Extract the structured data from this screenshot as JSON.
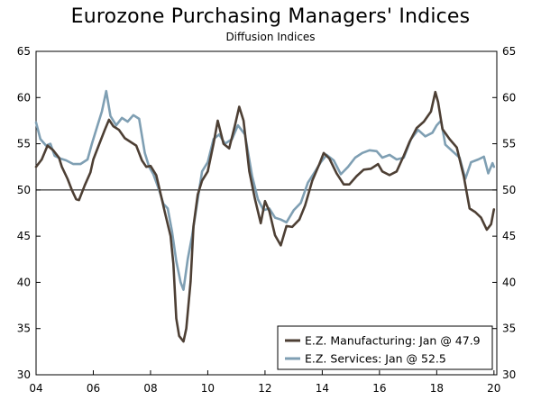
{
  "chart_data": {
    "type": "line",
    "title": "Eurozone Purchasing Managers' Indices",
    "subtitle": "Diffusion Indices",
    "xlabel": "",
    "ylabel": "",
    "xlim": [
      2004,
      2020.1
    ],
    "ylim": [
      30,
      65
    ],
    "x_ticks": [
      2004,
      2006,
      2008,
      2010,
      2012,
      2014,
      2016,
      2018,
      2020
    ],
    "x_tick_labels": [
      "04",
      "06",
      "08",
      "10",
      "12",
      "14",
      "16",
      "18",
      "20"
    ],
    "y_ticks": [
      30,
      35,
      40,
      45,
      50,
      55,
      60,
      65
    ],
    "y_tick_labels": [
      "30",
      "35",
      "40",
      "45",
      "50",
      "55",
      "60",
      "65"
    ],
    "reference_line": 50,
    "grid": false,
    "legend_position": "bottom-right",
    "series": [
      {
        "name": "E.Z. Manufacturing: Jan @ 47.9",
        "color": "#4d3f34",
        "points": [
          [
            2004.0,
            52.5
          ],
          [
            2004.2,
            53.3
          ],
          [
            2004.4,
            54.8
          ],
          [
            2004.6,
            54.3
          ],
          [
            2004.8,
            53.5
          ],
          [
            2004.9,
            52.5
          ],
          [
            2005.1,
            51.2
          ],
          [
            2005.25,
            50.0
          ],
          [
            2005.4,
            49.0
          ],
          [
            2005.5,
            48.9
          ],
          [
            2005.7,
            50.5
          ],
          [
            2005.9,
            51.9
          ],
          [
            2006.0,
            53.3
          ],
          [
            2006.2,
            54.9
          ],
          [
            2006.4,
            56.5
          ],
          [
            2006.55,
            57.6
          ],
          [
            2006.7,
            56.9
          ],
          [
            2006.9,
            56.5
          ],
          [
            2007.1,
            55.6
          ],
          [
            2007.3,
            55.2
          ],
          [
            2007.5,
            54.8
          ],
          [
            2007.7,
            53.2
          ],
          [
            2007.85,
            52.5
          ],
          [
            2008.0,
            52.6
          ],
          [
            2008.2,
            51.6
          ],
          [
            2008.35,
            49.6
          ],
          [
            2008.5,
            47.6
          ],
          [
            2008.7,
            45.0
          ],
          [
            2008.8,
            42.0
          ],
          [
            2008.9,
            36.1
          ],
          [
            2009.0,
            34.2
          ],
          [
            2009.15,
            33.6
          ],
          [
            2009.25,
            35.0
          ],
          [
            2009.4,
            40.1
          ],
          [
            2009.5,
            46.1
          ],
          [
            2009.65,
            49.5
          ],
          [
            2009.8,
            51.0
          ],
          [
            2010.0,
            52.0
          ],
          [
            2010.2,
            55.0
          ],
          [
            2010.35,
            57.5
          ],
          [
            2010.55,
            55.0
          ],
          [
            2010.75,
            54.5
          ],
          [
            2010.95,
            57.0
          ],
          [
            2011.1,
            59.0
          ],
          [
            2011.25,
            57.5
          ],
          [
            2011.45,
            52.0
          ],
          [
            2011.65,
            49.0
          ],
          [
            2011.85,
            46.4
          ],
          [
            2012.0,
            48.8
          ],
          [
            2012.15,
            47.7
          ],
          [
            2012.35,
            45.1
          ],
          [
            2012.55,
            44.0
          ],
          [
            2012.75,
            46.1
          ],
          [
            2012.95,
            46.0
          ],
          [
            2013.2,
            46.8
          ],
          [
            2013.4,
            48.3
          ],
          [
            2013.65,
            51.0
          ],
          [
            2013.9,
            52.8
          ],
          [
            2014.05,
            54.0
          ],
          [
            2014.25,
            53.4
          ],
          [
            2014.5,
            51.8
          ],
          [
            2014.75,
            50.6
          ],
          [
            2014.95,
            50.6
          ],
          [
            2015.2,
            51.5
          ],
          [
            2015.45,
            52.2
          ],
          [
            2015.7,
            52.3
          ],
          [
            2015.95,
            52.8
          ],
          [
            2016.1,
            52.0
          ],
          [
            2016.35,
            51.6
          ],
          [
            2016.6,
            52.0
          ],
          [
            2016.85,
            53.7
          ],
          [
            2017.05,
            55.2
          ],
          [
            2017.3,
            56.7
          ],
          [
            2017.55,
            57.4
          ],
          [
            2017.8,
            58.5
          ],
          [
            2017.95,
            60.6
          ],
          [
            2018.05,
            59.5
          ],
          [
            2018.2,
            56.6
          ],
          [
            2018.45,
            55.5
          ],
          [
            2018.7,
            54.6
          ],
          [
            2018.95,
            51.4
          ],
          [
            2019.15,
            48.0
          ],
          [
            2019.35,
            47.6
          ],
          [
            2019.55,
            47.0
          ],
          [
            2019.75,
            45.7
          ],
          [
            2019.9,
            46.3
          ],
          [
            2020.0,
            47.9
          ]
        ]
      },
      {
        "name": "E.Z. Services: Jan @ 52.5",
        "color": "#7f9fb3",
        "points": [
          [
            2004.0,
            57.3
          ],
          [
            2004.15,
            55.5
          ],
          [
            2004.35,
            54.8
          ],
          [
            2004.5,
            55.0
          ],
          [
            2004.65,
            53.7
          ],
          [
            2004.85,
            53.4
          ],
          [
            2005.05,
            53.2
          ],
          [
            2005.3,
            52.8
          ],
          [
            2005.55,
            52.8
          ],
          [
            2005.8,
            53.3
          ],
          [
            2005.95,
            55.0
          ],
          [
            2006.15,
            57.0
          ],
          [
            2006.3,
            58.5
          ],
          [
            2006.45,
            60.7
          ],
          [
            2006.6,
            58.0
          ],
          [
            2006.8,
            57.0
          ],
          [
            2007.0,
            57.8
          ],
          [
            2007.2,
            57.4
          ],
          [
            2007.4,
            58.1
          ],
          [
            2007.6,
            57.7
          ],
          [
            2007.8,
            54.0
          ],
          [
            2007.95,
            52.5
          ],
          [
            2008.1,
            51.7
          ],
          [
            2008.3,
            50.0
          ],
          [
            2008.45,
            48.5
          ],
          [
            2008.6,
            48.0
          ],
          [
            2008.75,
            45.5
          ],
          [
            2008.9,
            42.3
          ],
          [
            2009.05,
            40.0
          ],
          [
            2009.15,
            39.2
          ],
          [
            2009.3,
            42.5
          ],
          [
            2009.45,
            45.0
          ],
          [
            2009.6,
            48.0
          ],
          [
            2009.8,
            52.0
          ],
          [
            2010.0,
            53.0
          ],
          [
            2010.2,
            55.5
          ],
          [
            2010.4,
            56.0
          ],
          [
            2010.6,
            55.0
          ],
          [
            2010.85,
            55.5
          ],
          [
            2011.05,
            57.0
          ],
          [
            2011.3,
            56.0
          ],
          [
            2011.55,
            51.5
          ],
          [
            2011.75,
            49.0
          ],
          [
            2011.95,
            47.8
          ],
          [
            2012.15,
            48.0
          ],
          [
            2012.35,
            47.0
          ],
          [
            2012.55,
            46.8
          ],
          [
            2012.75,
            46.5
          ],
          [
            2013.0,
            47.8
          ],
          [
            2013.25,
            48.6
          ],
          [
            2013.5,
            50.8
          ],
          [
            2013.75,
            52.0
          ],
          [
            2013.95,
            53.0
          ],
          [
            2014.15,
            53.8
          ],
          [
            2014.4,
            53.2
          ],
          [
            2014.65,
            51.7
          ],
          [
            2014.9,
            52.5
          ],
          [
            2015.15,
            53.5
          ],
          [
            2015.4,
            54.0
          ],
          [
            2015.65,
            54.3
          ],
          [
            2015.9,
            54.2
          ],
          [
            2016.1,
            53.5
          ],
          [
            2016.35,
            53.8
          ],
          [
            2016.6,
            53.3
          ],
          [
            2016.85,
            53.5
          ],
          [
            2017.1,
            55.5
          ],
          [
            2017.35,
            56.5
          ],
          [
            2017.6,
            55.8
          ],
          [
            2017.85,
            56.2
          ],
          [
            2018.0,
            57.0
          ],
          [
            2018.15,
            57.5
          ],
          [
            2018.3,
            54.9
          ],
          [
            2018.55,
            54.2
          ],
          [
            2018.8,
            53.5
          ],
          [
            2019.0,
            51.2
          ],
          [
            2019.2,
            53.0
          ],
          [
            2019.45,
            53.3
          ],
          [
            2019.65,
            53.6
          ],
          [
            2019.8,
            51.8
          ],
          [
            2019.95,
            52.9
          ],
          [
            2020.0,
            52.5
          ]
        ]
      }
    ]
  }
}
